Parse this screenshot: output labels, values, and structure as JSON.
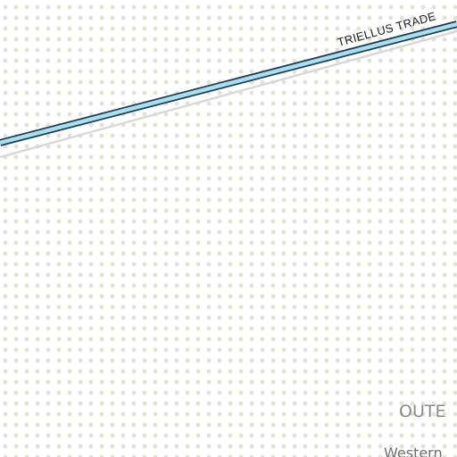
{
  "map": {
    "route": {
      "label": "TRIELLUS TRADE",
      "color": "#a7dff0",
      "outline_color": "#1f3b4d",
      "shadow_color": "#d9d9d9"
    },
    "region_label": "OUTE",
    "sector_label": "Western",
    "background_dot_color": "#e3e2d8"
  }
}
